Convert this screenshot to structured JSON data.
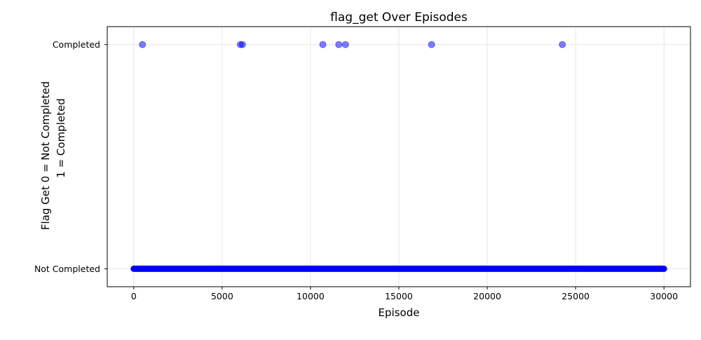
{
  "chart_data": {
    "type": "scatter",
    "title": "flag_get Over Episodes",
    "xlabel": "Episode",
    "ylabel_lines": [
      "Flag Get   0 = Not Completed",
      "1 = Completed"
    ],
    "xlim": [
      -1500,
      31500
    ],
    "ylim": [
      -0.08,
      1.08
    ],
    "xticks": [
      0,
      5000,
      10000,
      15000,
      20000,
      25000,
      30000
    ],
    "yticks": [
      {
        "value": 0,
        "label": "Not Completed"
      },
      {
        "value": 1,
        "label": "Completed"
      }
    ],
    "grid": true,
    "marker_color": "#0000ff",
    "marker_alpha": 0.5,
    "completed_episodes": [
      490,
      6030,
      6150,
      10700,
      11600,
      11980,
      16850,
      24250
    ],
    "not_completed_range": [
      0,
      30000
    ]
  }
}
